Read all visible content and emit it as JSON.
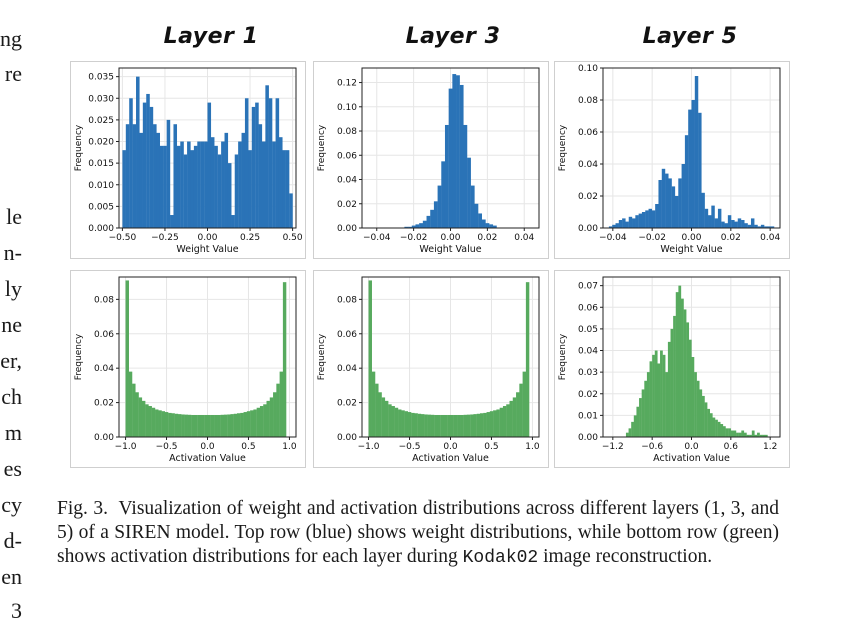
{
  "left_text_fragments": [
    "ng",
    "re",
    "le",
    "n-",
    "ly",
    "ne",
    "er,",
    "ch",
    "m",
    "es",
    "cy",
    "d-",
    "en",
    "3"
  ],
  "column_titles": [
    "Layer 1",
    "Layer 3",
    "Layer 5"
  ],
  "caption": {
    "prefix": "Fig. 3.",
    "body_1": "Visualization of weight and activation distributions across different layers (1, 3, and 5) of a SIREN model. Top row (blue) shows weight distributions, while bottom row (green) shows activation distributions for each layer during",
    "code": "Kodak02",
    "body_2": "image reconstruction."
  },
  "colors": {
    "weight": "#2a73b7",
    "activation": "#57aa5e",
    "grid": "#e6e6e6"
  },
  "chart_data": [
    {
      "type": "bar",
      "title": "Layer 1",
      "xlabel": "Weight Value",
      "ylabel": "Frequency",
      "xlim": [
        -0.52,
        0.52
      ],
      "ylim": [
        0,
        0.037
      ],
      "xticks": [
        -0.5,
        -0.25,
        0.0,
        0.25,
        0.5
      ],
      "xticklabels": [
        "−0.50",
        "−0.25",
        "0.00",
        "0.25",
        "0.50"
      ],
      "yticks": [
        0,
        0.005,
        0.01,
        0.015,
        0.02,
        0.025,
        0.03,
        0.035
      ],
      "yticklabels": [
        "0.000",
        "0.005",
        "0.010",
        "0.015",
        "0.020",
        "0.025",
        "0.030",
        "0.035"
      ],
      "bin_start": -0.5,
      "bin_width": 0.02,
      "color": "weight",
      "values": [
        0.018,
        0.024,
        0.03,
        0.024,
        0.035,
        0.022,
        0.029,
        0.031,
        0.028,
        0.024,
        0.022,
        0.019,
        0.019,
        0.025,
        0.003,
        0.024,
        0.019,
        0.02,
        0.017,
        0.02,
        0.018,
        0.019,
        0.02,
        0.02,
        0.02,
        0.029,
        0.021,
        0.019,
        0.017,
        0.02,
        0.022,
        0.015,
        0.003,
        0.017,
        0.02,
        0.022,
        0.03,
        0.018,
        0.028,
        0.029,
        0.024,
        0.02,
        0.033,
        0.03,
        0.02,
        0.03,
        0.021,
        0.018,
        0.018,
        0.008
      ]
    },
    {
      "type": "bar",
      "title": "Layer 3",
      "xlabel": "Weight Value",
      "ylabel": "Frequency",
      "xlim": [
        -0.048,
        0.048
      ],
      "ylim": [
        0,
        0.132
      ],
      "xticks": [
        -0.04,
        -0.02,
        0.0,
        0.02,
        0.04
      ],
      "xticklabels": [
        "−0.04",
        "−0.02",
        "0.00",
        "0.02",
        "0.04"
      ],
      "yticks": [
        0,
        0.02,
        0.04,
        0.06,
        0.08,
        0.1,
        0.12
      ],
      "yticklabels": [
        "0.00",
        "0.02",
        "0.04",
        "0.06",
        "0.08",
        "0.10",
        "0.12"
      ],
      "bin_start": -0.025,
      "bin_width": 0.002,
      "color": "weight",
      "values": [
        0.001,
        0.001,
        0.002,
        0.003,
        0.004,
        0.006,
        0.01,
        0.015,
        0.022,
        0.035,
        0.055,
        0.085,
        0.115,
        0.127,
        0.126,
        0.118,
        0.085,
        0.058,
        0.035,
        0.02,
        0.012,
        0.007,
        0.004,
        0.003,
        0.002
      ]
    },
    {
      "type": "bar",
      "title": "Layer 5",
      "xlabel": "Weight Value",
      "ylabel": "Frequency",
      "xlim": [
        -0.045,
        0.045
      ],
      "ylim": [
        0,
        0.1
      ],
      "xticks": [
        -0.04,
        -0.02,
        0.0,
        0.02,
        0.04
      ],
      "xticklabels": [
        "−0.04",
        "−0.02",
        "0.00",
        "0.02",
        "0.04"
      ],
      "yticks": [
        0,
        0.02,
        0.04,
        0.06,
        0.08,
        0.1
      ],
      "yticklabels": [
        "0.00",
        "0.02",
        "0.04",
        "0.06",
        "0.08",
        "0.10"
      ],
      "bin_start": -0.042,
      "bin_width": 0.00168,
      "color": "weight",
      "values": [
        0.001,
        0.002,
        0.003,
        0.005,
        0.006,
        0.004,
        0.007,
        0.006,
        0.008,
        0.009,
        0.01,
        0.011,
        0.012,
        0.011,
        0.015,
        0.03,
        0.037,
        0.034,
        0.031,
        0.026,
        0.02,
        0.031,
        0.04,
        0.058,
        0.074,
        0.08,
        0.095,
        0.072,
        0.022,
        0.012,
        0.008,
        0.014,
        0.006,
        0.012,
        0.004,
        0.003,
        0.008,
        0.005,
        0.004,
        0.006,
        0.005,
        0.003,
        0.002,
        0.006,
        0.002,
        0.001,
        0.002,
        0.001,
        0.001,
        0.001
      ]
    },
    {
      "type": "bar",
      "title": "",
      "xlabel": "Activation Value",
      "ylabel": "Frequency",
      "xlim": [
        -1.08,
        1.08
      ],
      "ylim": [
        0,
        0.093
      ],
      "xticks": [
        -1.0,
        -0.5,
        0.0,
        0.5,
        1.0
      ],
      "xticklabels": [
        "−1.0",
        "−0.5",
        "0.0",
        "0.5",
        "1.0"
      ],
      "yticks": [
        0,
        0.02,
        0.04,
        0.06,
        0.08
      ],
      "yticklabels": [
        "0.00",
        "0.02",
        "0.04",
        "0.06",
        "0.08"
      ],
      "bin_start": -1.0,
      "bin_width": 0.04,
      "color": "activation",
      "values": [
        0.091,
        0.038,
        0.031,
        0.026,
        0.023,
        0.021,
        0.019,
        0.018,
        0.017,
        0.016,
        0.0155,
        0.015,
        0.0145,
        0.014,
        0.0138,
        0.0135,
        0.0133,
        0.0131,
        0.013,
        0.0129,
        0.0128,
        0.0128,
        0.0128,
        0.0128,
        0.0128,
        0.0128,
        0.0128,
        0.0128,
        0.0128,
        0.0129,
        0.013,
        0.0131,
        0.0133,
        0.0135,
        0.0138,
        0.014,
        0.0145,
        0.015,
        0.0155,
        0.016,
        0.017,
        0.018,
        0.019,
        0.021,
        0.023,
        0.026,
        0.031,
        0.038,
        0.09
      ]
    },
    {
      "type": "bar",
      "title": "",
      "xlabel": "Activation Value",
      "ylabel": "Frequency",
      "xlim": [
        -1.08,
        1.08
      ],
      "ylim": [
        0,
        0.093
      ],
      "xticks": [
        -1.0,
        -0.5,
        0.0,
        0.5,
        1.0
      ],
      "xticklabels": [
        "−1.0",
        "−0.5",
        "0.0",
        "0.5",
        "1.0"
      ],
      "yticks": [
        0,
        0.02,
        0.04,
        0.06,
        0.08
      ],
      "yticklabels": [
        "0.00",
        "0.02",
        "0.04",
        "0.06",
        "0.08"
      ],
      "bin_start": -1.0,
      "bin_width": 0.04,
      "color": "activation",
      "values": [
        0.091,
        0.038,
        0.031,
        0.026,
        0.023,
        0.021,
        0.019,
        0.018,
        0.017,
        0.016,
        0.0155,
        0.015,
        0.0145,
        0.014,
        0.0138,
        0.0135,
        0.0133,
        0.0131,
        0.013,
        0.0129,
        0.0128,
        0.0128,
        0.0128,
        0.0128,
        0.0128,
        0.0128,
        0.0128,
        0.0128,
        0.0128,
        0.0129,
        0.013,
        0.0131,
        0.0133,
        0.0135,
        0.0138,
        0.014,
        0.0145,
        0.015,
        0.0155,
        0.016,
        0.017,
        0.018,
        0.019,
        0.021,
        0.023,
        0.026,
        0.031,
        0.038,
        0.09
      ]
    },
    {
      "type": "bar",
      "title": "",
      "xlabel": "Activation Value",
      "ylabel": "Frequency",
      "xlim": [
        -1.35,
        1.35
      ],
      "ylim": [
        0,
        0.074
      ],
      "xticks": [
        -1.2,
        -0.6,
        0.0,
        0.6,
        1.2
      ],
      "xticklabels": [
        "−1.2",
        "−0.6",
        "0.0",
        "0.6",
        "1.2"
      ],
      "yticks": [
        0,
        0.01,
        0.02,
        0.03,
        0.04,
        0.05,
        0.06,
        0.07
      ],
      "yticklabels": [
        "0.00",
        "0.01",
        "0.02",
        "0.03",
        "0.04",
        "0.05",
        "0.06",
        "0.07"
      ],
      "bin_start": -1.0,
      "bin_width": 0.04,
      "color": "activation",
      "values": [
        0.002,
        0.004,
        0.007,
        0.01,
        0.014,
        0.018,
        0.022,
        0.026,
        0.03,
        0.035,
        0.038,
        0.04,
        0.034,
        0.04,
        0.038,
        0.03,
        0.044,
        0.05,
        0.056,
        0.067,
        0.07,
        0.064,
        0.059,
        0.053,
        0.045,
        0.037,
        0.03,
        0.026,
        0.022,
        0.019,
        0.016,
        0.013,
        0.011,
        0.009,
        0.008,
        0.007,
        0.006,
        0.005,
        0.004,
        0.004,
        0.003,
        0.003,
        0.002,
        0.002,
        0.003,
        0.002,
        0.001,
        0.001,
        0.003,
        0.001,
        0.002,
        0.001,
        0.001,
        0.001
      ]
    }
  ]
}
